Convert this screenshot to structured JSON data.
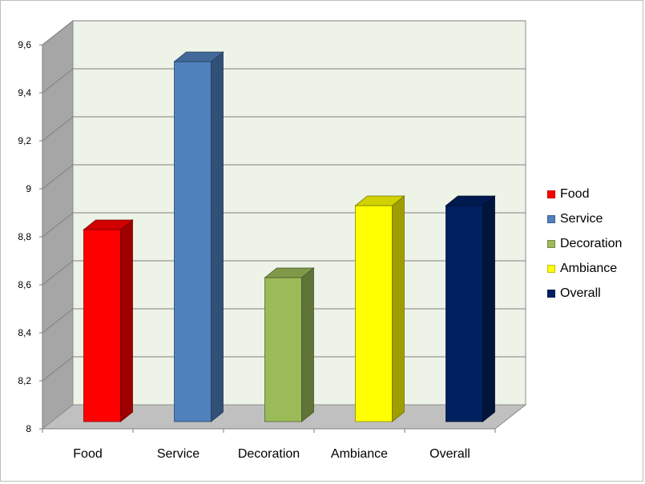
{
  "chart_data": {
    "type": "bar",
    "title": "",
    "xlabel": "",
    "ylabel": "",
    "categories": [
      "Food",
      "Service",
      "Decoration",
      "Ambiance",
      "Overall"
    ],
    "values": [
      8.8,
      9.5,
      8.6,
      8.9,
      8.9
    ],
    "colors": [
      "#ff0000",
      "#4f81bd",
      "#9bbb59",
      "#ffff00",
      "#002060"
    ],
    "ylim": [
      8,
      9.6
    ],
    "yticks": [
      8,
      8.2,
      8.4,
      8.6,
      8.8,
      9,
      9.2,
      9.4,
      9.6
    ],
    "ytick_labels": [
      "8",
      "8,2",
      "8,4",
      "8,6",
      "8,8",
      "9",
      "9,2",
      "9,4",
      "9,6"
    ],
    "grid": true,
    "three_d": true,
    "legend_position": "right"
  },
  "legend": [
    {
      "label": "Food",
      "color": "#ff0000"
    },
    {
      "label": "Service",
      "color": "#4f81bd"
    },
    {
      "label": "Decoration",
      "color": "#9bbb59"
    },
    {
      "label": "Ambiance",
      "color": "#ffff00"
    },
    {
      "label": "Overall",
      "color": "#002060"
    }
  ]
}
